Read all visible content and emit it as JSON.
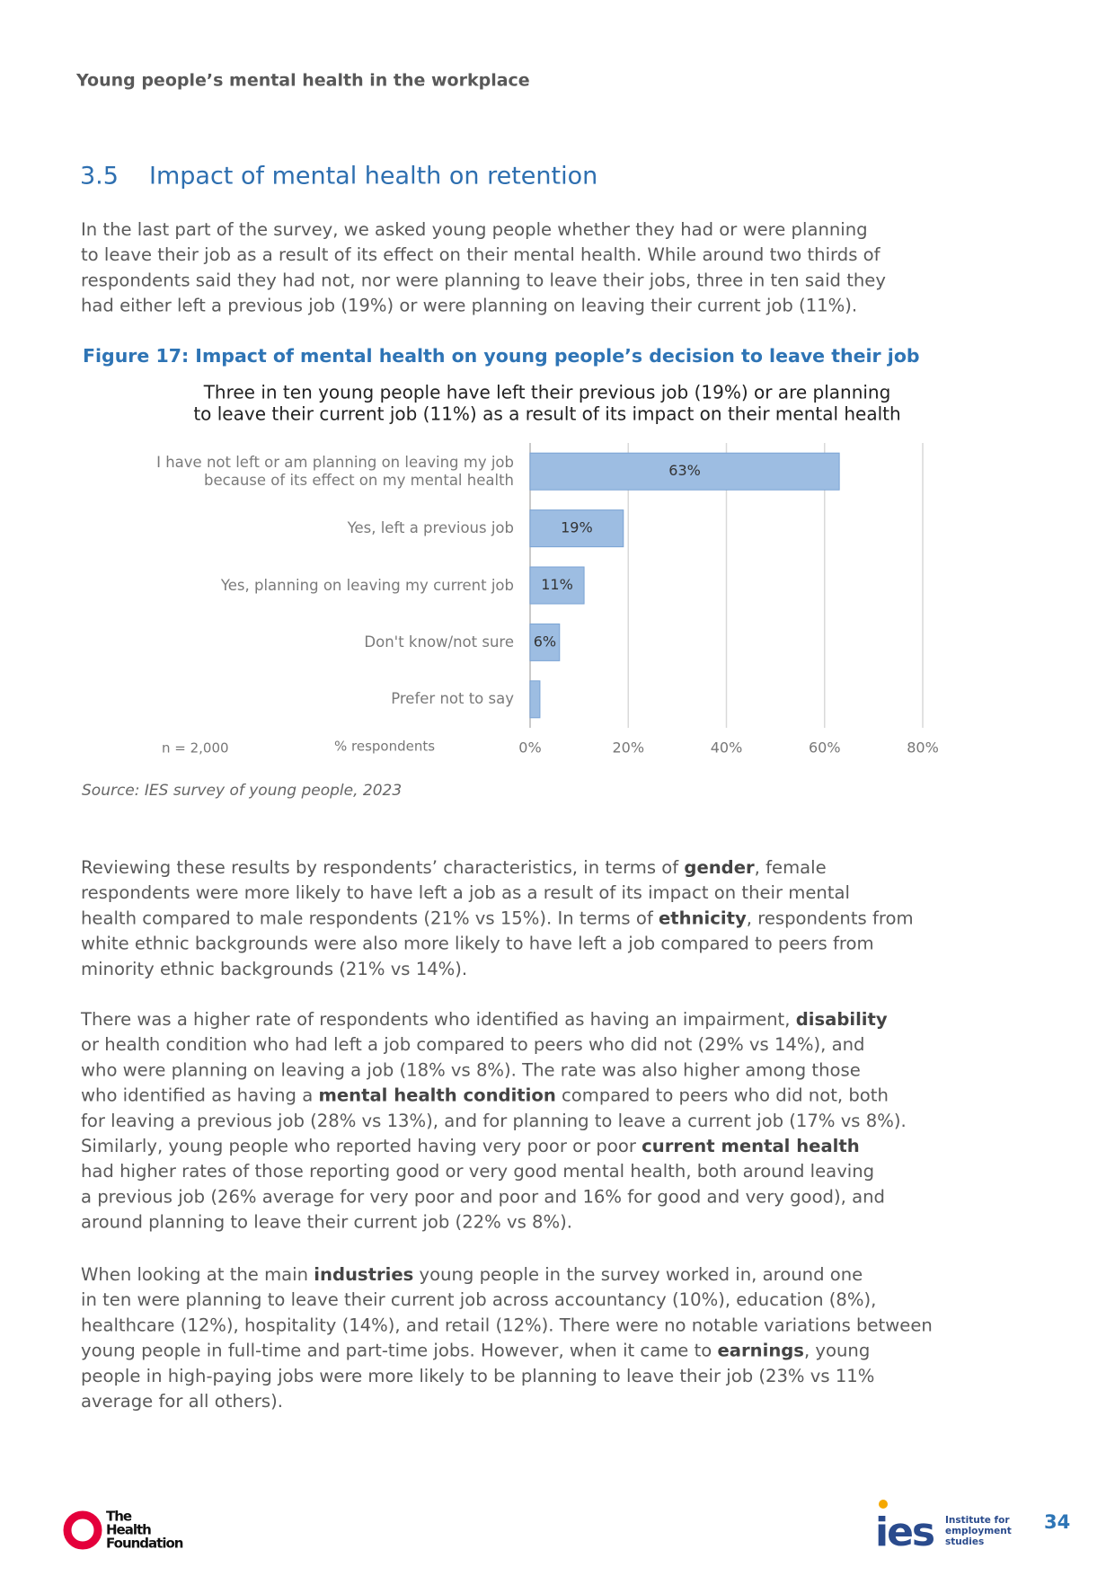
{
  "header": {
    "running_title": "Young people’s mental health in the workplace"
  },
  "section": {
    "number": "3.5",
    "title": "Impact of mental health on retention"
  },
  "intro": {
    "lines": [
      [
        "In the last part of the survey, we asked young people whether they had or were planning"
      ],
      [
        "to leave their job as a result of its effect on their mental health. While around two thirds of"
      ],
      [
        "respondents said they had not, nor were planning to leave their jobs, three in ten said they"
      ],
      [
        "had either left a previous job (19%) or were planning on leaving their current job (11%)."
      ]
    ]
  },
  "figure": {
    "caption": "Figure 17: Impact of mental health on young people’s decision to leave their job",
    "note": "n = 2,000",
    "source": "Source: IES survey of young people, 2023"
  },
  "chart_data": {
    "type": "bar",
    "orientation": "horizontal",
    "title": [
      "Three in ten young people have left their previous job (19%) or are planning",
      "to leave their current job (11%) as a result of its impact on their mental health"
    ],
    "x_label": "% respondents",
    "categories": [
      "I have not left or am planning on leaving my job because of its effect on my mental health",
      "Yes, left a previous job",
      "Yes, planning on leaving my current job",
      "Don't know/not sure",
      "Prefer not to say"
    ],
    "values": [
      63,
      19,
      11,
      6,
      2
    ],
    "value_labels": [
      "63%",
      "19%",
      "11%",
      "6%",
      null
    ],
    "color": "#9dbde2",
    "xlim": [
      0,
      80
    ],
    "xticks": [
      {
        "value": 0,
        "label": "0%"
      },
      {
        "value": 20,
        "label": "20%"
      },
      {
        "value": 40,
        "label": "40%"
      },
      {
        "value": 60,
        "label": "60%"
      },
      {
        "value": 80,
        "label": "80%"
      }
    ],
    "grid": true
  },
  "paragraphs": [
    {
      "lines": [
        [
          "Reviewing these results by respondents’ characteristics, in terms of ",
          {
            "text": "gender",
            "bold": true
          },
          ", female"
        ],
        [
          "respondents were more likely to have left a job as a result of its impact on their mental"
        ],
        [
          "health compared to male respondents (21% vs 15%). In terms of ",
          {
            "text": "ethnicity",
            "bold": true
          },
          ", respondents from"
        ],
        [
          "white ethnic backgrounds were also more likely to have left a job compared to peers from"
        ],
        [
          "minority ethnic backgrounds (21% vs 14%)."
        ]
      ]
    },
    {
      "lines": [
        [
          "There was a higher rate of respondents who identified as having an impairment, ",
          {
            "text": "disability",
            "bold": true
          }
        ],
        [
          "or health condition who had left a job compared to peers who did not (29% vs 14%), and"
        ],
        [
          "who were planning on leaving a job (18% vs 8%). The rate was also higher among those"
        ],
        [
          "who identified as having a ",
          {
            "text": "mental health condition",
            "bold": true
          },
          " compared to peers who did not, both"
        ],
        [
          "for leaving a previous job (28% vs 13%), and for planning to leave a current job (17% vs 8%)."
        ],
        [
          "Similarly, young people who reported having very poor or poor ",
          {
            "text": "current mental health",
            "bold": true
          }
        ],
        [
          "had higher rates of those reporting good or very good mental health, both around leaving"
        ],
        [
          "a previous job (26% average for very poor and poor and 16% for good and very good), and"
        ],
        [
          "around planning to leave their current job (22% vs 8%)."
        ]
      ]
    },
    {
      "lines": [
        [
          "When looking at the main ",
          {
            "text": "industries",
            "bold": true
          },
          " young people in the survey worked in, around one"
        ],
        [
          "in ten were planning to leave their current job across accountancy (10%), education (8%),"
        ],
        [
          "healthcare (12%), hospitality (14%), and retail (12%). There were no notable variations between"
        ],
        [
          "young people in full-time and part-time jobs. However, when it came to ",
          {
            "text": "earnings",
            "bold": true
          },
          ", young"
        ],
        [
          "people in high-paying jobs were more likely to be planning to leave their job (23% vs 11%"
        ],
        [
          "average for all others)."
        ]
      ]
    }
  ],
  "footer": {
    "left_logo": [
      "The",
      "Health",
      "Foundation"
    ],
    "right_logo_mark": "ies",
    "right_logo_text": [
      "Institute for",
      "employment",
      "studies"
    ],
    "page_number": "34"
  }
}
